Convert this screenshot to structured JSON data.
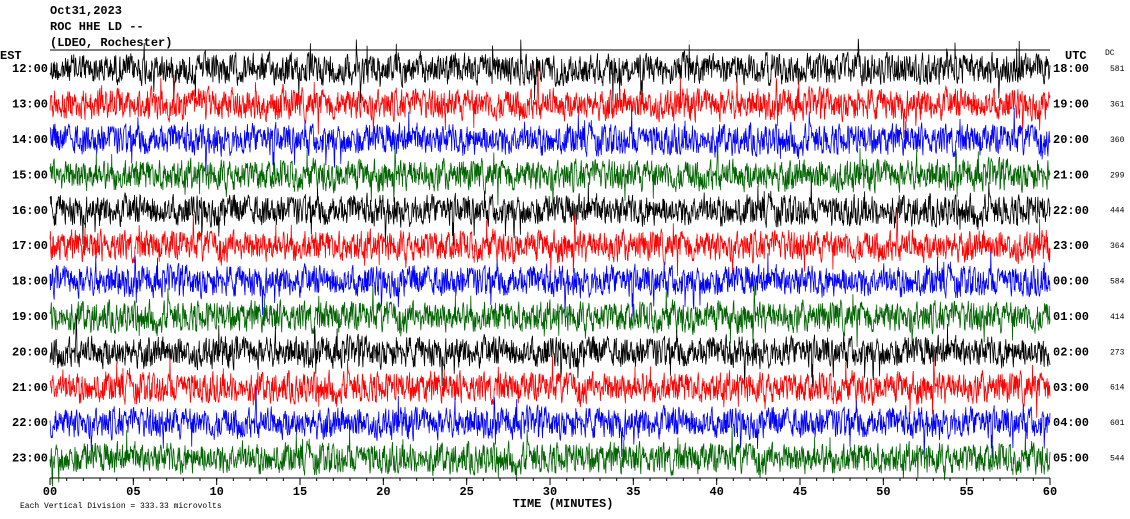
{
  "chart_data": {
    "type": "helicorder",
    "title": [
      "Oct31,2023",
      "ROC HHE LD --",
      "(LDEO, Rochester)"
    ],
    "left_axis_label": "EST",
    "right_axis_label": "UTC",
    "dc_label": "DC",
    "xlabel": "TIME (MINUTES)",
    "note": "Each Vertical Division = 333.33 microvolts",
    "xlim": [
      0,
      60
    ],
    "xticks": [
      {
        "value": 0,
        "label": "00"
      },
      {
        "value": 5,
        "label": "05"
      },
      10,
      15,
      20,
      25,
      30,
      35,
      40,
      45,
      50,
      55,
      60
    ],
    "categories": [
      "12:00",
      "13:00",
      "14:00",
      "15:00",
      "16:00",
      "17:00",
      "18:00",
      "19:00",
      "20:00",
      "21:00",
      "22:00",
      "23:00"
    ],
    "utc_labels": [
      "18:00",
      "19:00",
      "20:00",
      "21:00",
      "22:00",
      "23:00",
      "00:00",
      "01:00",
      "02:00",
      "03:00",
      "04:00",
      "05:00"
    ],
    "dc": [
      581,
      361,
      360,
      299,
      444,
      364,
      584,
      414,
      273,
      614,
      601,
      544
    ],
    "colors": [
      "#000000",
      "#ff0000",
      "#0000ff",
      "#006400"
    ]
  }
}
